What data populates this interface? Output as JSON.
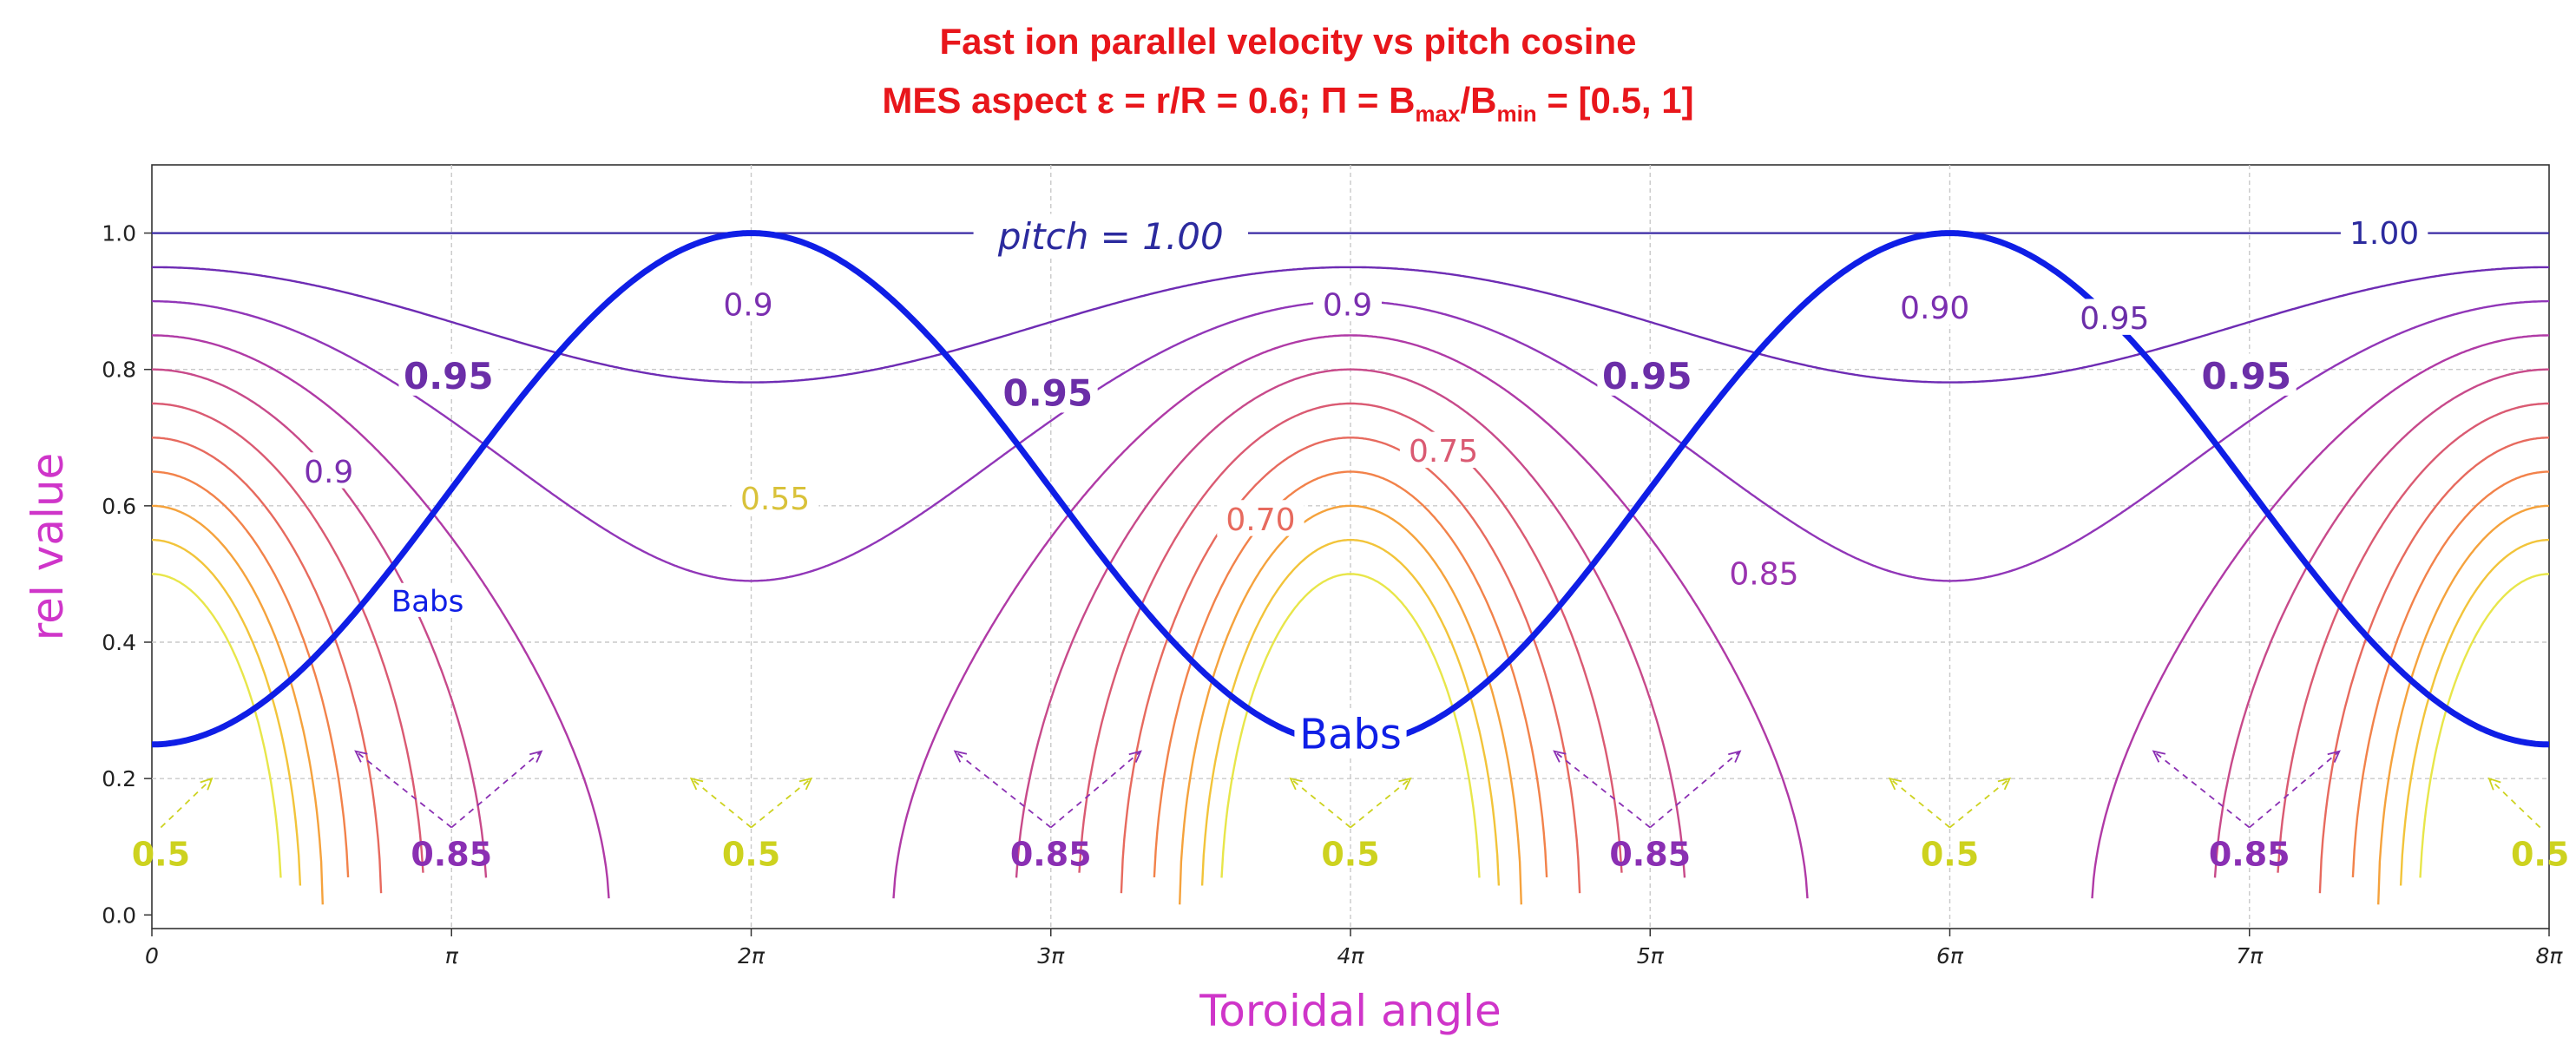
{
  "chart_data": {
    "type": "line",
    "title": "Fast ion parallel velocity vs pitch cosine",
    "subtitle": {
      "prefix": "MES aspect  ε = r/R = 0.6;     Π = B",
      "sub_max": "max",
      "slash": "/B",
      "sub_min": "min",
      "suffix": "  = [0.5, 1]"
    },
    "xlabel": "Toroidal angle",
    "ylabel": "rel value",
    "xlim_pi": [
      0,
      8
    ],
    "ylim": [
      -0.02,
      1.1
    ],
    "grid": true,
    "x_ticks": [
      {
        "pi": 0,
        "label": "0"
      },
      {
        "pi": 1,
        "label": "π"
      },
      {
        "pi": 2,
        "label": "2π"
      },
      {
        "pi": 3,
        "label": "3π"
      },
      {
        "pi": 4,
        "label": "4π"
      },
      {
        "pi": 5,
        "label": "5π"
      },
      {
        "pi": 6,
        "label": "6π"
      },
      {
        "pi": 7,
        "label": "7π"
      },
      {
        "pi": 8,
        "label": "8π"
      }
    ],
    "y_ticks": [
      {
        "value": 0.0,
        "label": "0.0"
      },
      {
        "value": 0.2,
        "label": "0.2"
      },
      {
        "value": 0.4,
        "label": "0.4"
      },
      {
        "value": 0.6,
        "label": "0.6"
      },
      {
        "value": 0.8,
        "label": "0.8"
      },
      {
        "value": 1.0,
        "label": "1.0"
      }
    ],
    "babs_curve": {
      "name": "Babs",
      "min": 0.25,
      "max": 1.0,
      "period_pi": 4,
      "peak_at_pi": 2,
      "color": "#0f1ee6"
    },
    "pitch_levels": [
      {
        "pitch": 0.5,
        "color": "#e8e64a"
      },
      {
        "pitch": 0.55,
        "color": "#f2c43a"
      },
      {
        "pitch": 0.6,
        "color": "#f5a23c"
      },
      {
        "pitch": 0.65,
        "color": "#f2824a"
      },
      {
        "pitch": 0.7,
        "color": "#e76a5e"
      },
      {
        "pitch": 0.75,
        "color": "#da5a72"
      },
      {
        "pitch": 0.8,
        "color": "#c84a8a"
      },
      {
        "pitch": 0.85,
        "color": "#b03aa6"
      },
      {
        "pitch": 0.9,
        "color": "#9136b8"
      },
      {
        "pitch": 0.95,
        "color": "#6e2cb4"
      },
      {
        "pitch": 1.0,
        "color": "#3a2aa4"
      }
    ],
    "contour_labels": [
      {
        "text": "pitch = 1.00",
        "x_pi": 3.2,
        "y": 0.995,
        "color": "#2b2a9e",
        "italic": true,
        "bold": false
      },
      {
        "text": "1.00",
        "x_pi": 7.45,
        "y": 1.0,
        "color": "#2b2a9e",
        "italic": false,
        "bold": false
      },
      {
        "text": "0.9",
        "x_pi": 1.99,
        "y": 0.895,
        "color": "#7b2fb0",
        "italic": false,
        "bold": false
      },
      {
        "text": "0.9",
        "x_pi": 3.99,
        "y": 0.895,
        "color": "#7b2fb0",
        "italic": false,
        "bold": false
      },
      {
        "text": "0.90",
        "x_pi": 5.95,
        "y": 0.89,
        "color": "#7b2fb0",
        "italic": false,
        "bold": false
      },
      {
        "text": "0.95",
        "x_pi": 6.55,
        "y": 0.875,
        "color": "#6b2ea8",
        "italic": false,
        "bold": false
      },
      {
        "text": "0.95",
        "x_pi": 0.99,
        "y": 0.79,
        "color": "#6b2ea8",
        "italic": false,
        "bold": true
      },
      {
        "text": "0.95",
        "x_pi": 2.99,
        "y": 0.765,
        "color": "#6b2ea8",
        "italic": false,
        "bold": true
      },
      {
        "text": "0.95",
        "x_pi": 4.99,
        "y": 0.79,
        "color": "#6b2ea8",
        "italic": false,
        "bold": true
      },
      {
        "text": "0.95",
        "x_pi": 6.99,
        "y": 0.79,
        "color": "#6b2ea8",
        "italic": false,
        "bold": true
      },
      {
        "text": "0.9",
        "x_pi": 0.59,
        "y": 0.65,
        "color": "#7b2fb0",
        "italic": false,
        "bold": false
      },
      {
        "text": "0.55",
        "x_pi": 2.08,
        "y": 0.61,
        "color": "#d9c23a",
        "italic": false,
        "bold": false
      },
      {
        "text": "0.70",
        "x_pi": 3.7,
        "y": 0.58,
        "color": "#e76a5e",
        "italic": false,
        "bold": false
      },
      {
        "text": "0.75",
        "x_pi": 4.31,
        "y": 0.68,
        "color": "#da5a72",
        "italic": false,
        "bold": false
      },
      {
        "text": "0.85",
        "x_pi": 5.38,
        "y": 0.5,
        "color": "#9a33b0",
        "italic": false,
        "bold": false
      },
      {
        "text": "Babs",
        "x_pi": 0.92,
        "y": 0.46,
        "color": "#0f1ee6",
        "italic": false,
        "bold": false
      },
      {
        "text": "Babs",
        "x_pi": 4.0,
        "y": 0.265,
        "color": "#0f1ee6",
        "italic": false,
        "bold": false
      }
    ],
    "annotations": [
      {
        "text": "0.5",
        "x_pi": 0.03,
        "y": 0.085,
        "color": "#cdd21f",
        "arrow_to": [
          {
            "x_pi": 0.2,
            "y": 0.2
          }
        ]
      },
      {
        "text": "0.85",
        "x_pi": 1.0,
        "y": 0.085,
        "color": "#8a2fb3",
        "arrow_to": [
          {
            "x_pi": 0.68,
            "y": 0.24
          },
          {
            "x_pi": 1.3,
            "y": 0.24
          }
        ]
      },
      {
        "text": "0.5",
        "x_pi": 2.0,
        "y": 0.085,
        "color": "#cdd21f",
        "arrow_to": [
          {
            "x_pi": 1.8,
            "y": 0.2
          },
          {
            "x_pi": 2.2,
            "y": 0.2
          }
        ]
      },
      {
        "text": "0.85",
        "x_pi": 3.0,
        "y": 0.085,
        "color": "#8a2fb3",
        "arrow_to": [
          {
            "x_pi": 2.68,
            "y": 0.24
          },
          {
            "x_pi": 3.3,
            "y": 0.24
          }
        ]
      },
      {
        "text": "0.5",
        "x_pi": 4.0,
        "y": 0.085,
        "color": "#cdd21f",
        "arrow_to": [
          {
            "x_pi": 3.8,
            "y": 0.2
          },
          {
            "x_pi": 4.2,
            "y": 0.2
          }
        ]
      },
      {
        "text": "0.85",
        "x_pi": 5.0,
        "y": 0.085,
        "color": "#8a2fb3",
        "arrow_to": [
          {
            "x_pi": 4.68,
            "y": 0.24
          },
          {
            "x_pi": 5.3,
            "y": 0.24
          }
        ]
      },
      {
        "text": "0.5",
        "x_pi": 6.0,
        "y": 0.085,
        "color": "#cdd21f",
        "arrow_to": [
          {
            "x_pi": 5.8,
            "y": 0.2
          },
          {
            "x_pi": 6.2,
            "y": 0.2
          }
        ]
      },
      {
        "text": "0.85",
        "x_pi": 7.0,
        "y": 0.085,
        "color": "#8a2fb3",
        "arrow_to": [
          {
            "x_pi": 6.68,
            "y": 0.24
          },
          {
            "x_pi": 7.3,
            "y": 0.24
          }
        ]
      },
      {
        "text": "0.5",
        "x_pi": 7.97,
        "y": 0.085,
        "color": "#cdd21f",
        "arrow_to": [
          {
            "x_pi": 7.8,
            "y": 0.2
          }
        ]
      }
    ]
  }
}
